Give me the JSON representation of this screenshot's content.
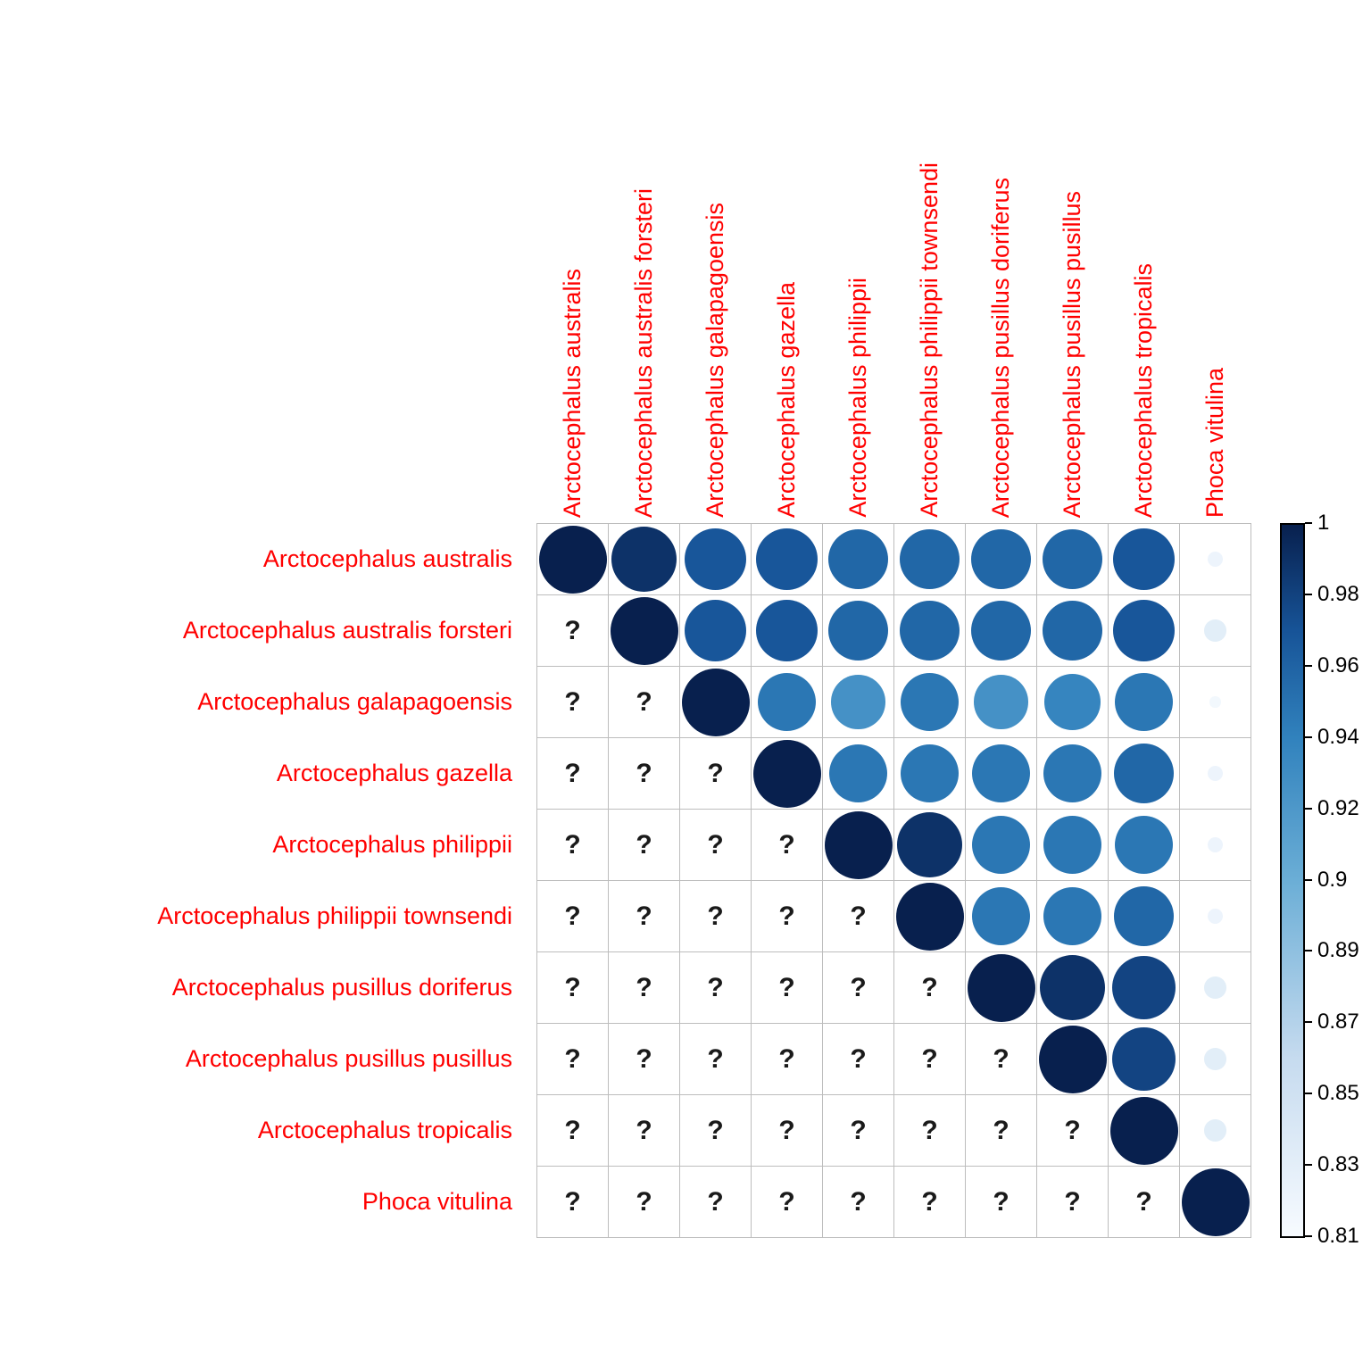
{
  "chart_data": {
    "type": "heatmap",
    "variant": "correlation-circle-matrix-upper-triangle",
    "title": "",
    "labels": [
      "Arctocephalus australis",
      "Arctocephalus australis forsteri",
      "Arctocephalus galapagoensis",
      "Arctocephalus gazella",
      "Arctocephalus philippii",
      "Arctocephalus philippii townsendi",
      "Arctocephalus pusillus doriferus",
      "Arctocephalus pusillus pusillus",
      "Arctocephalus tropicalis",
      "Phoca vitulina"
    ],
    "matrix": [
      [
        1,
        0.99,
        0.97,
        0.97,
        0.96,
        0.96,
        0.96,
        0.96,
        0.97,
        0.82
      ],
      [
        null,
        1,
        0.97,
        0.97,
        0.96,
        0.96,
        0.96,
        0.96,
        0.97,
        0.83
      ],
      [
        null,
        null,
        1,
        0.95,
        0.93,
        0.95,
        0.93,
        0.94,
        0.95,
        0.815
      ],
      [
        null,
        null,
        null,
        1,
        0.95,
        0.95,
        0.95,
        0.95,
        0.96,
        0.82
      ],
      [
        null,
        null,
        null,
        null,
        1,
        0.99,
        0.95,
        0.95,
        0.95,
        0.82
      ],
      [
        null,
        null,
        null,
        null,
        null,
        1,
        0.95,
        0.95,
        0.96,
        0.82
      ],
      [
        null,
        null,
        null,
        null,
        null,
        null,
        1,
        0.99,
        0.98,
        0.83
      ],
      [
        null,
        null,
        null,
        null,
        null,
        null,
        null,
        1,
        0.98,
        0.83
      ],
      [
        null,
        null,
        null,
        null,
        null,
        null,
        null,
        null,
        1,
        0.83
      ],
      [
        null,
        null,
        null,
        null,
        null,
        null,
        null,
        null,
        null,
        1
      ]
    ],
    "missing_symbol": "?",
    "legend_position": "right",
    "grid": true,
    "colorbar": {
      "min": 0.81,
      "max": 1,
      "ticks": [
        "1",
        "0.98",
        "0.96",
        "0.94",
        "0.92",
        "0.9",
        "0.89",
        "0.87",
        "0.85",
        "0.83",
        "0.81"
      ]
    },
    "colors": {
      "label": "#ff0000",
      "question_mark": "#1a1a1a",
      "grid_line": "#bdbdbd",
      "scale_low": "#f7fbff",
      "scale_mid": "#6baed6",
      "scale_high": "#08204e"
    }
  }
}
